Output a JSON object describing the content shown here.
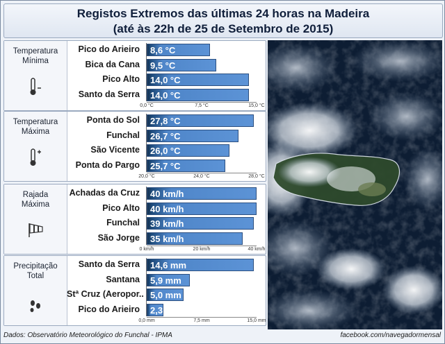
{
  "title": {
    "line1": "Registos Extremos das últimas 24 horas na Madeira",
    "line2": "(até às 22h de 25 de Setembro de 2015)"
  },
  "footer": {
    "source": "Dados:  Observatório Meteorológico do Funchal - IPMA",
    "credit": "facebook.com/navegadormensal"
  },
  "colors": {
    "bar": "#5c93d6",
    "bar_dark": "#16324f",
    "frame": "#9aa9bf"
  },
  "chart_data": [
    {
      "type": "bar",
      "category_label": [
        "Temperatura",
        "Mínima"
      ],
      "icon": "thermometer-minus-icon",
      "categories": [
        "Pico do Arieiro",
        "Bica da Cana",
        "Pico Alto",
        "Santo da Serra"
      ],
      "values": [
        8.6,
        9.5,
        14.0,
        14.0
      ],
      "value_labels": [
        "8,6 °C",
        "9,5 °C",
        "14,0 °C",
        "14,0 °C"
      ],
      "ticks": [
        "0,0 °C",
        "7,5 °C",
        "15,0 °C"
      ],
      "xlim": [
        0,
        15
      ]
    },
    {
      "type": "bar",
      "category_label": [
        "Temperatura",
        "Máxima"
      ],
      "icon": "thermometer-plus-icon",
      "categories": [
        "Ponta do Sol",
        "Funchal",
        "São Vicente",
        "Ponta do Pargo"
      ],
      "values": [
        27.8,
        26.7,
        26.0,
        25.7
      ],
      "value_labels": [
        "27,8 °C",
        "26,7 °C",
        "26,0 °C",
        "25,7 °C"
      ],
      "ticks": [
        "20,0 °C",
        "24,0 °C",
        "28,0 °C"
      ],
      "xlim": [
        20,
        28
      ]
    },
    {
      "type": "bar",
      "category_label": [
        "Rajada",
        "Máxima"
      ],
      "icon": "windsock-icon",
      "categories": [
        "Achadas da Cruz",
        "Pico Alto",
        "Funchal",
        "São Jorge"
      ],
      "values": [
        40,
        40,
        39,
        35
      ],
      "value_labels": [
        "40 km/h",
        "40 km/h",
        "39 km/h",
        "35 km/h"
      ],
      "ticks": [
        "0 km/h",
        "20 km/h",
        "40 km/h"
      ],
      "xlim": [
        0,
        40
      ]
    },
    {
      "type": "bar",
      "category_label": [
        "Precipitação",
        "Total"
      ],
      "icon": "raindrops-icon",
      "categories": [
        "Santo da Serra",
        "Santana",
        "Stª Cruz (Aeropor..",
        "Pico do Arieiro"
      ],
      "values": [
        14.6,
        5.9,
        5.0,
        2.3
      ],
      "value_labels": [
        "14,6 mm",
        "5,9 mm",
        "5,0 mm",
        "2,3 mm"
      ],
      "ticks": [
        "0,0 mm",
        "7,5 mm",
        "15,0 mm"
      ],
      "xlim": [
        0,
        15
      ]
    }
  ]
}
